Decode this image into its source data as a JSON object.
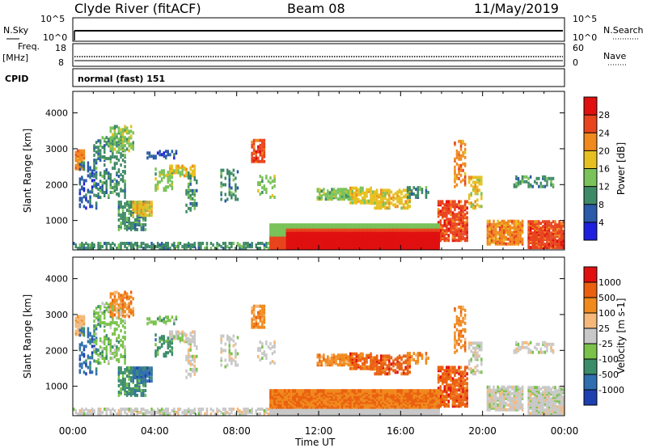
{
  "header": {
    "site": "Clyde River (fitACF)",
    "beam": "Beam 08",
    "date": "11/May/2019"
  },
  "strip1": {
    "left_label": "N.Sky",
    "right_label": "N.Search",
    "left_ticks": [
      "10^5",
      "10^0"
    ],
    "right_ticks": [
      "10^5",
      "10^0"
    ]
  },
  "strip2": {
    "left_label_1": "Freq.",
    "left_label_2": "[MHz]",
    "right_label": "Nave",
    "left_ticks": [
      "18",
      "8"
    ],
    "right_ticks": [
      "60",
      "0"
    ]
  },
  "cpid": {
    "label": "CPID",
    "value": "normal (fast) 151"
  },
  "chart_data": [
    {
      "type": "heatmap",
      "name": "power",
      "ylabel": "Slant Range [km]",
      "ylim": [
        180,
        4600
      ],
      "yticks": [
        "1000",
        "2000",
        "3000",
        "4000"
      ],
      "colorbar_label": "Power [dB]",
      "colorbar_ticks": [
        "4",
        "8",
        "12",
        "16",
        "20",
        "24",
        "28"
      ],
      "colors": [
        "#1f1fe0",
        "#2a5aa8",
        "#3f8a66",
        "#7ac25a",
        "#e6c020",
        "#f08a1e",
        "#e8441e",
        "#e01010"
      ]
    },
    {
      "type": "heatmap",
      "name": "velocity",
      "ylabel": "Slant Range [km]",
      "ylim": [
        180,
        4600
      ],
      "yticks": [
        "1000",
        "2000",
        "3000",
        "4000"
      ],
      "xticks": [
        "00:00",
        "04:00",
        "08:00",
        "12:00",
        "16:00",
        "20:00",
        "00:00"
      ],
      "xlabel": "Time UT",
      "colorbar_label": "Velocity [m s-1]",
      "colorbar_ticks": [
        "1000",
        "500",
        "100",
        "25",
        "-25",
        "-100",
        "-500",
        "-1000"
      ],
      "colors": [
        "#1e3fb0",
        "#2f6fb0",
        "#3c8c6a",
        "#7ac24a",
        "#c8c8c8",
        "#f5b87a",
        "#f08a1e",
        "#ea6010",
        "#e01010"
      ]
    }
  ]
}
